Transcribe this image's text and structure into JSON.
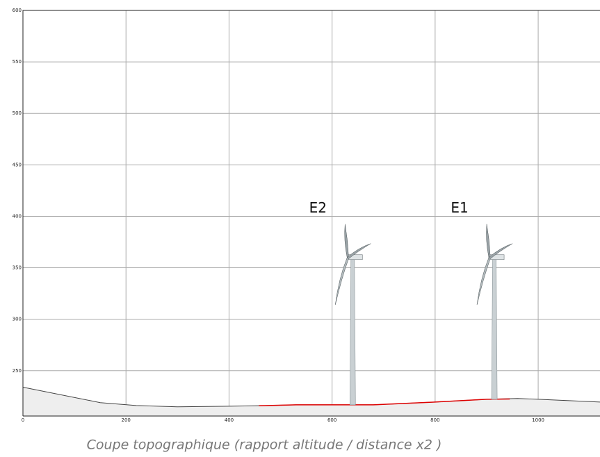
{
  "chart_data": {
    "type": "line",
    "caption": "Coupe topographique (rapport altitude / distance x2 )",
    "xlim": [
      0,
      1120
    ],
    "ylim": [
      206,
      600
    ],
    "xticks": [
      0,
      200,
      400,
      600,
      800,
      1000
    ],
    "yticks": [
      250,
      300,
      350,
      400,
      450,
      500,
      550,
      600
    ],
    "grid": true,
    "series": [
      {
        "color": "#444444",
        "fill": "#eeeeee",
        "x": [
          0,
          150,
          220,
          300,
          400,
          460,
          530,
          680,
          800,
          900,
          960,
          1000,
          1120
        ],
        "values": [
          234,
          219,
          216.2,
          214.9,
          215.5,
          216,
          216.9,
          216.9,
          219.6,
          222.3,
          223,
          222.3,
          219.6
        ]
      },
      {
        "color": "#dd0000",
        "x": [
          458,
          530,
          680,
          800,
          900,
          945
        ],
        "values": [
          216,
          216.9,
          216.9,
          219.6,
          222.3,
          222.5
        ]
      }
    ],
    "turbines": [
      {
        "label": "E2",
        "x": 640,
        "hub_height": 360,
        "base": 216.9
      },
      {
        "label": "E1",
        "x": 915,
        "hub_height": 360,
        "base": 222.3
      }
    ]
  }
}
